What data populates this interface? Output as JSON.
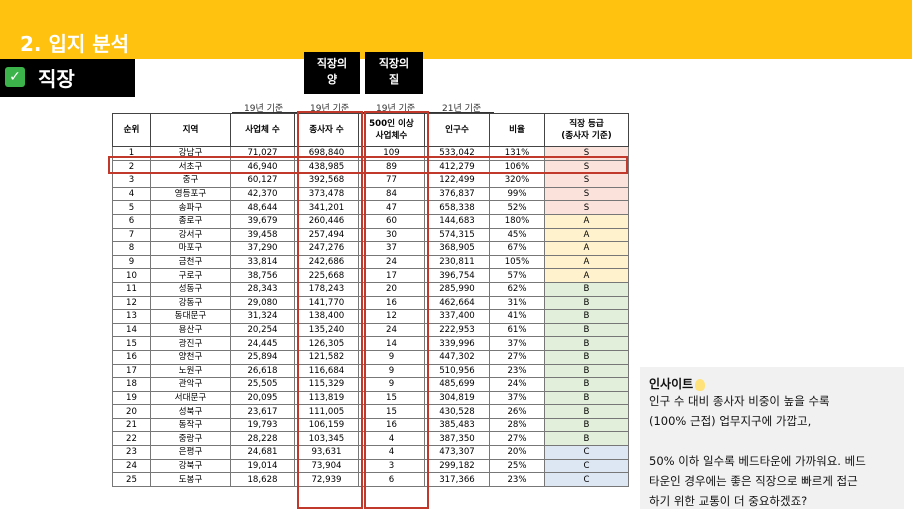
{
  "header": {
    "section_title": "2. 입지 분석",
    "subtitle": "직장",
    "check_icon": "✓"
  },
  "tags": {
    "quantity": "직장의\n양",
    "quality": "직장의\n질"
  },
  "year_labels": [
    "19년 기준",
    "19년 기준",
    "19년 기준",
    "21년 기준"
  ],
  "table": {
    "headers": [
      "순위",
      "지역",
      "사업체 수",
      "종사자 수",
      "500인 이상\n사업체수",
      "인구수",
      "비율",
      "직장 등급\n(종사자 기준)"
    ],
    "grade_colors": {
      "S": "#fbe3dc",
      "A": "#fff2cc",
      "B": "#e2efda",
      "C": "#dde7f4"
    },
    "rows": [
      [
        "1",
        "강남구",
        "71,027",
        "698,840",
        "109",
        "533,042",
        "131%",
        "S"
      ],
      [
        "2",
        "서초구",
        "46,940",
        "438,985",
        "89",
        "412,279",
        "106%",
        "S"
      ],
      [
        "3",
        "중구",
        "60,127",
        "392,568",
        "77",
        "122,499",
        "320%",
        "S"
      ],
      [
        "4",
        "영등포구",
        "42,370",
        "373,478",
        "84",
        "376,837",
        "99%",
        "S"
      ],
      [
        "5",
        "송파구",
        "48,644",
        "341,201",
        "47",
        "658,338",
        "52%",
        "S"
      ],
      [
        "6",
        "종로구",
        "39,679",
        "260,446",
        "60",
        "144,683",
        "180%",
        "A"
      ],
      [
        "7",
        "강서구",
        "39,458",
        "257,494",
        "30",
        "574,315",
        "45%",
        "A"
      ],
      [
        "8",
        "마포구",
        "37,290",
        "247,276",
        "37",
        "368,905",
        "67%",
        "A"
      ],
      [
        "9",
        "금천구",
        "33,814",
        "242,686",
        "24",
        "230,811",
        "105%",
        "A"
      ],
      [
        "10",
        "구로구",
        "38,756",
        "225,668",
        "17",
        "396,754",
        "57%",
        "A"
      ],
      [
        "11",
        "성동구",
        "28,343",
        "178,243",
        "20",
        "285,990",
        "62%",
        "B"
      ],
      [
        "12",
        "강동구",
        "29,080",
        "141,770",
        "16",
        "462,664",
        "31%",
        "B"
      ],
      [
        "13",
        "동대문구",
        "31,324",
        "138,400",
        "12",
        "337,400",
        "41%",
        "B"
      ],
      [
        "14",
        "용산구",
        "20,254",
        "135,240",
        "24",
        "222,953",
        "61%",
        "B"
      ],
      [
        "15",
        "광진구",
        "24,445",
        "126,305",
        "14",
        "339,996",
        "37%",
        "B"
      ],
      [
        "16",
        "양천구",
        "25,894",
        "121,582",
        "9",
        "447,302",
        "27%",
        "B"
      ],
      [
        "17",
        "노원구",
        "26,618",
        "116,684",
        "9",
        "510,956",
        "23%",
        "B"
      ],
      [
        "18",
        "관악구",
        "25,505",
        "115,329",
        "9",
        "485,699",
        "24%",
        "B"
      ],
      [
        "19",
        "서대문구",
        "20,095",
        "113,819",
        "15",
        "304,819",
        "37%",
        "B"
      ],
      [
        "20",
        "성북구",
        "23,617",
        "111,005",
        "15",
        "430,528",
        "26%",
        "B"
      ],
      [
        "21",
        "동작구",
        "19,793",
        "106,159",
        "16",
        "385,483",
        "28%",
        "B"
      ],
      [
        "22",
        "중랑구",
        "28,228",
        "103,345",
        "4",
        "387,350",
        "27%",
        "B"
      ],
      [
        "23",
        "은평구",
        "24,681",
        "93,631",
        "4",
        "473,307",
        "20%",
        "C"
      ],
      [
        "24",
        "강북구",
        "19,014",
        "73,904",
        "3",
        "299,182",
        "25%",
        "C"
      ],
      [
        "25",
        "도봉구",
        "18,628",
        "72,939",
        "6",
        "317,366",
        "23%",
        "C"
      ]
    ]
  },
  "insight": {
    "title": "인사이트",
    "lines": [
      "인구 수 대비 종사자 비중이 높을 수록",
      "(100% 근접) 업무지구에 가깝고,",
      "",
      "50% 이하 일수록 베드타운에 가까워요. 베드",
      "타운인 경우에는 좋은 직장으로 빠르게 접근",
      "하기 위한 교통이 더 중요하겠죠?"
    ]
  }
}
